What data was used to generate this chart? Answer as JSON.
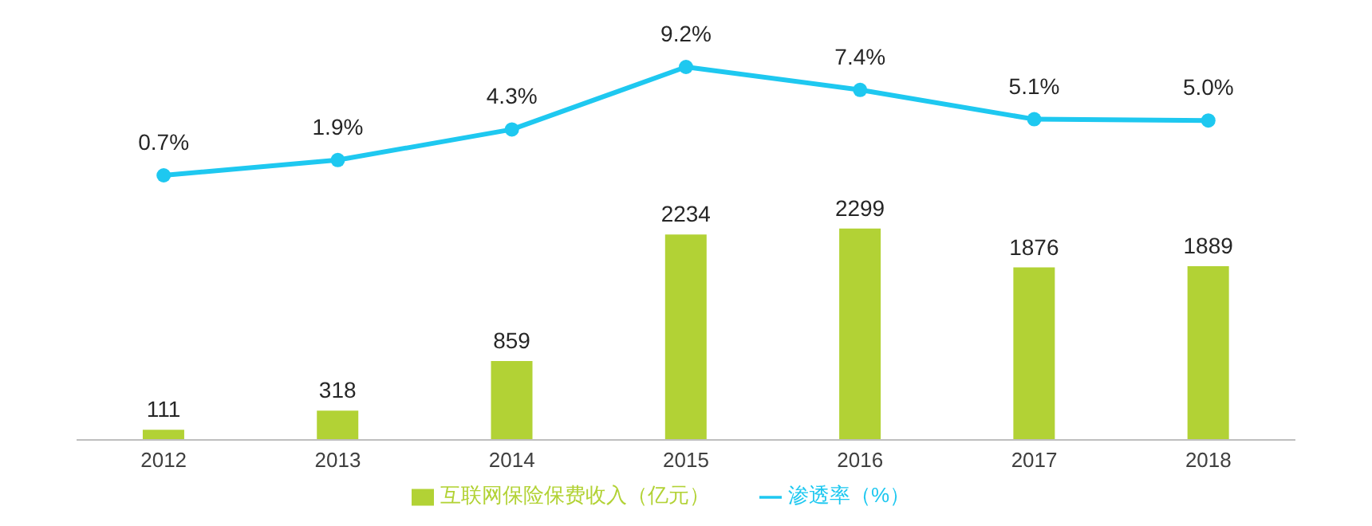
{
  "chart_data": [
    {
      "type": "bar",
      "categories": [
        "2012",
        "2013",
        "2014",
        "2015",
        "2016",
        "2017",
        "2018"
      ],
      "series": [
        {
          "name": "互联网保险保费收入（亿元）",
          "color": "#b2d235",
          "values": [
            111,
            318,
            859,
            2234,
            2299,
            1876,
            1889
          ]
        }
      ],
      "data_labels": true,
      "legend": "bottom"
    },
    {
      "type": "line",
      "categories": [
        "2012",
        "2013",
        "2014",
        "2015",
        "2016",
        "2017",
        "2018"
      ],
      "series": [
        {
          "name": "渗透率（%）",
          "color": "#1ec8f0",
          "values": [
            0.7,
            1.9,
            4.3,
            9.2,
            7.4,
            5.1,
            5.0
          ],
          "value_labels": [
            "0.7%",
            "1.9%",
            "4.3%",
            "9.2%",
            "7.4%",
            "5.1%",
            "5.0%"
          ]
        }
      ],
      "legend": "bottom",
      "marker": "circle",
      "tick_labels": false
    }
  ]
}
